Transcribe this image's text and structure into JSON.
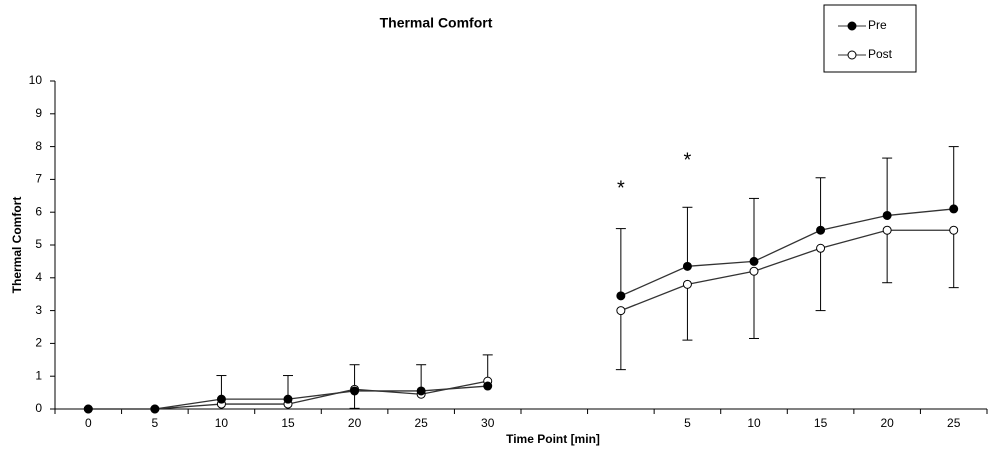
{
  "chart_data": {
    "type": "line",
    "title": "Thermal Comfort",
    "x_label": "Time Point [min]",
    "y_label": "Thermal Comfort",
    "categories": [
      "0",
      "5",
      "10",
      "15",
      "20",
      "25",
      "30",
      null,
      null,
      "5",
      "10",
      "15",
      "20",
      "25"
    ],
    "series": [
      {
        "name": "Pre",
        "color": "#000000",
        "marker_fill": "#000000",
        "error_direction": "up",
        "values": [
          0,
          0,
          0.3,
          0.3,
          0.55,
          0.55,
          0.7,
          null,
          3.45,
          4.35,
          4.5,
          5.45,
          5.9,
          6.1
        ],
        "errors": [
          null,
          null,
          0.72,
          0.72,
          0.8,
          0.8,
          0.95,
          null,
          2.05,
          1.8,
          1.92,
          1.6,
          1.75,
          1.9
        ]
      },
      {
        "name": "Post",
        "color": "#000000",
        "marker_fill": "#ffffff",
        "error_direction": "down",
        "values": [
          0,
          0,
          0.15,
          0.15,
          0.6,
          0.45,
          0.85,
          null,
          3.0,
          3.8,
          4.2,
          4.9,
          5.45,
          5.45
        ],
        "errors": [
          null,
          null,
          null,
          null,
          0.58,
          null,
          null,
          null,
          1.8,
          1.7,
          2.05,
          1.9,
          1.6,
          1.75
        ]
      }
    ],
    "annotations": [
      {
        "text": "*",
        "at": 8,
        "y": 6.7
      },
      {
        "text": "*",
        "at": 9,
        "y": 7.55
      }
    ],
    "ylim": [
      0,
      10
    ],
    "yticks": [
      0,
      1,
      2,
      3,
      4,
      5,
      6,
      7,
      8,
      9,
      10
    ],
    "legend": "upper right"
  }
}
